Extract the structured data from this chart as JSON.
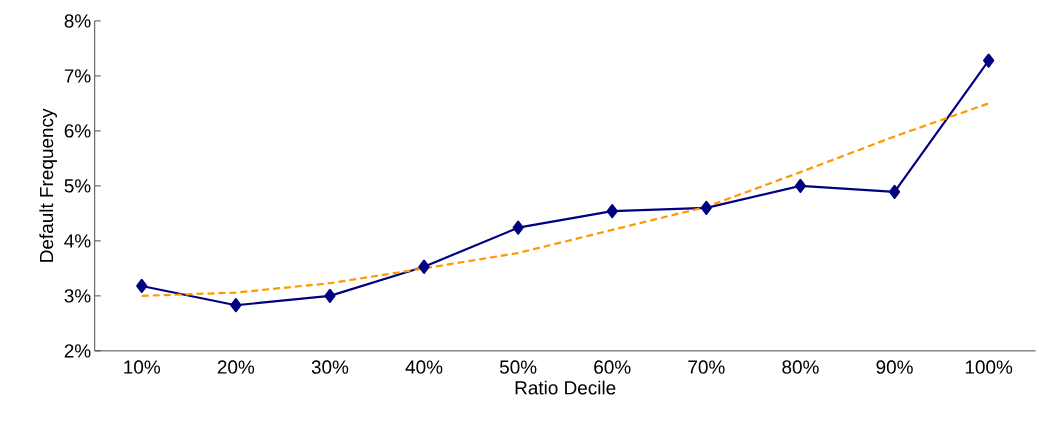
{
  "chart_data": {
    "type": "line",
    "xlabel": "Ratio Decile",
    "ylabel": "Default Frequency",
    "categories": [
      "10%",
      "20%",
      "30%",
      "40%",
      "50%",
      "60%",
      "70%",
      "80%",
      "90%",
      "100%"
    ],
    "series": [
      {
        "color": "#000080",
        "marker": "diamond",
        "line_style": "solid",
        "values": [
          3.18,
          2.83,
          3.0,
          3.53,
          4.24,
          4.54,
          4.6,
          5.0,
          4.89,
          7.28
        ]
      },
      {
        "color": "#ff9900",
        "marker": "none",
        "line_style": "dashed",
        "values": [
          3.0,
          3.06,
          3.23,
          3.5,
          3.78,
          4.2,
          4.62,
          5.25,
          5.9,
          6.5
        ]
      }
    ],
    "ylim": [
      2,
      8
    ],
    "yticks": [
      {
        "value": 2,
        "label": "2%"
      },
      {
        "value": 3,
        "label": "3%"
      },
      {
        "value": 4,
        "label": "4%"
      },
      {
        "value": 5,
        "label": "5%"
      },
      {
        "value": 6,
        "label": "6%"
      },
      {
        "value": 7,
        "label": "7%"
      },
      {
        "value": 8,
        "label": "8%"
      }
    ],
    "grid": false,
    "legend": false
  }
}
